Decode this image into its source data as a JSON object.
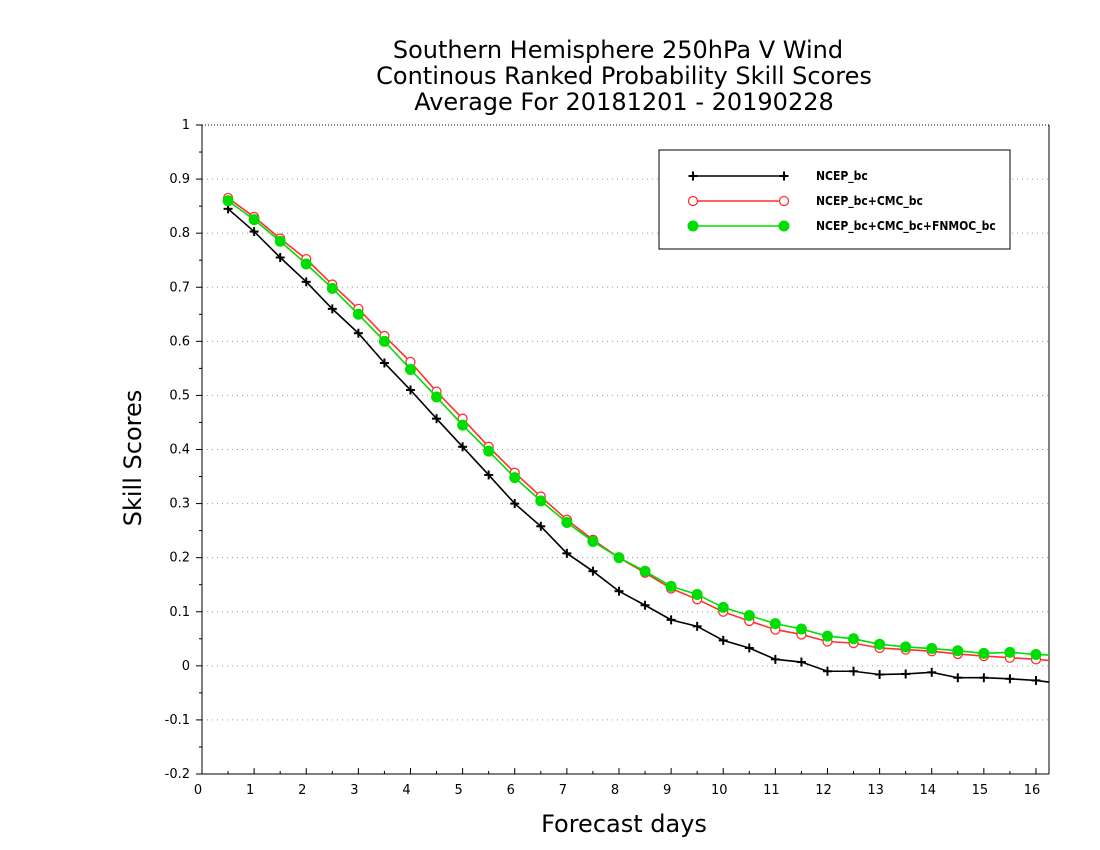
{
  "chart_data": {
    "type": "line",
    "title_lines": [
      "Southern Hemisphere 250hPa V Wind",
      "Continous Ranked Probability Skill Scores",
      "Average For 20181201 - 20190228"
    ],
    "xlabel": "Forecast days",
    "ylabel": "Skill Scores",
    "xlim": [
      0,
      16.25
    ],
    "ylim": [
      -0.2,
      1
    ],
    "xticks": [
      0,
      1,
      2,
      3,
      4,
      5,
      6,
      7,
      8,
      9,
      10,
      11,
      12,
      13,
      14,
      15,
      16
    ],
    "yticks": [
      -0.2,
      -0.1,
      0,
      0.1,
      0.2,
      0.3,
      0.4,
      0.5,
      0.6,
      0.7,
      0.8,
      0.9,
      1
    ],
    "ytick_labels": [
      "-0.2",
      "-0.1",
      "0",
      "0.1",
      "0.2",
      "0.3",
      "0.4",
      "0.5",
      "0.6",
      "0.7",
      "0.8",
      "0.9",
      "1"
    ],
    "grid": "horizontal dotted",
    "legend_position": "top-right",
    "x": [
      0.5,
      1,
      1.5,
      2,
      2.5,
      3,
      3.5,
      4,
      4.5,
      5,
      5.5,
      6,
      6.5,
      7,
      7.5,
      8,
      8.5,
      9,
      9.5,
      10,
      10.5,
      11,
      11.5,
      12,
      12.5,
      13,
      13.5,
      14,
      14.5,
      15,
      15.5,
      16,
      16.25
    ],
    "series": [
      {
        "name": "NCEP_bc",
        "color": "#000000",
        "marker": "plus",
        "values": [
          0.845,
          0.803,
          0.755,
          0.71,
          0.66,
          0.615,
          0.56,
          0.51,
          0.457,
          0.405,
          0.353,
          0.3,
          0.258,
          0.208,
          0.175,
          0.138,
          0.112,
          0.085,
          0.073,
          0.047,
          0.033,
          0.012,
          0.007,
          -0.01,
          -0.01,
          -0.016,
          -0.015,
          -0.012,
          -0.022,
          -0.022,
          -0.024,
          -0.027,
          -0.03
        ]
      },
      {
        "name": "NCEP_bc+CMC_bc",
        "color": "#ff3030",
        "marker": "circle-open",
        "values": [
          0.865,
          0.83,
          0.79,
          0.752,
          0.705,
          0.66,
          0.61,
          0.562,
          0.507,
          0.457,
          0.405,
          0.357,
          0.313,
          0.27,
          0.233,
          0.2,
          0.172,
          0.143,
          0.123,
          0.1,
          0.083,
          0.067,
          0.058,
          0.045,
          0.042,
          0.033,
          0.03,
          0.027,
          0.022,
          0.018,
          0.015,
          0.012,
          0.01
        ]
      },
      {
        "name": "NCEP_bc+CMC_bc+FNMOC_bc",
        "color": "#00dd00",
        "marker": "circle-filled",
        "values": [
          0.86,
          0.825,
          0.785,
          0.743,
          0.698,
          0.65,
          0.6,
          0.548,
          0.497,
          0.445,
          0.397,
          0.348,
          0.305,
          0.265,
          0.23,
          0.2,
          0.175,
          0.147,
          0.132,
          0.108,
          0.093,
          0.078,
          0.068,
          0.055,
          0.05,
          0.04,
          0.035,
          0.032,
          0.028,
          0.023,
          0.025,
          0.021,
          0.02
        ]
      }
    ]
  }
}
